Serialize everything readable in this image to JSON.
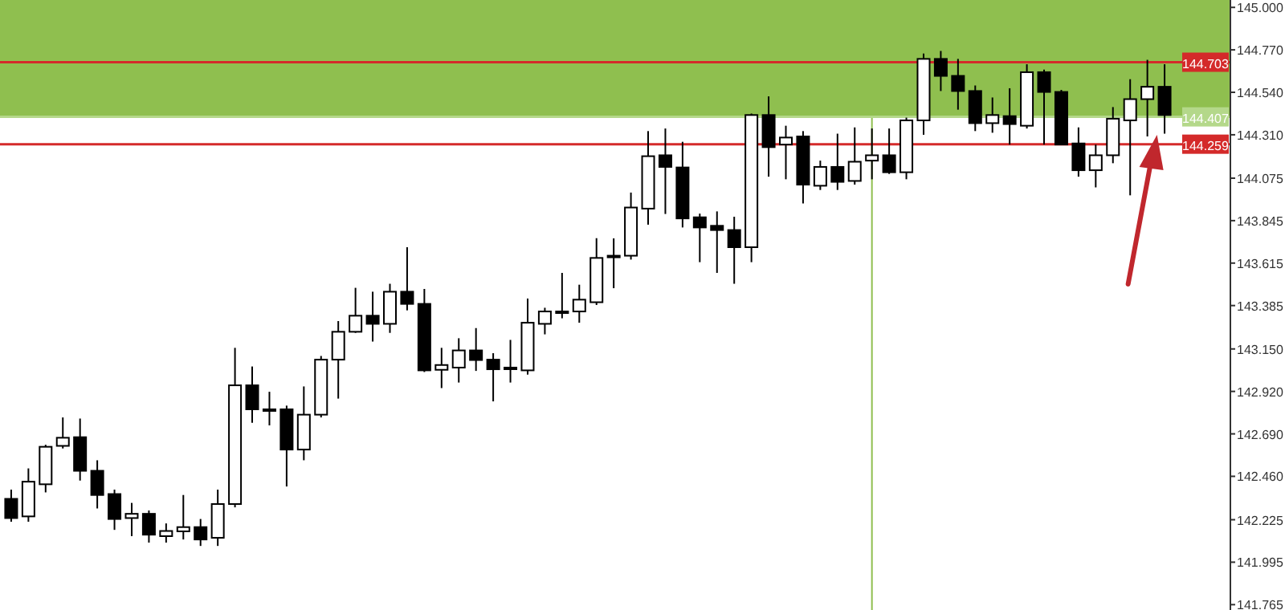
{
  "chart_data": {
    "type": "candlestick",
    "categories": [
      null,
      null,
      null,
      null,
      null,
      null,
      null,
      null,
      null,
      null,
      null,
      null,
      null,
      null,
      null,
      null,
      null,
      null,
      null,
      null,
      null,
      null,
      null,
      null,
      null,
      null,
      null,
      null,
      null,
      null,
      null,
      null,
      null,
      null,
      null,
      null,
      null,
      null,
      null,
      null,
      null,
      null,
      null,
      null,
      null,
      null,
      null,
      null,
      null,
      null,
      null,
      null,
      null,
      null,
      null,
      null,
      null,
      null,
      null,
      null,
      null,
      null,
      null,
      null,
      null,
      null,
      null,
      null
    ],
    "ohlc": [
      [
        142.338,
        142.388,
        142.214,
        142.234
      ],
      [
        142.243,
        142.503,
        142.214,
        142.431
      ],
      [
        142.417,
        142.631,
        142.373,
        142.62
      ],
      [
        142.625,
        142.779,
        142.611,
        142.669
      ],
      [
        142.672,
        142.773,
        142.437,
        142.49
      ],
      [
        142.49,
        142.547,
        142.286,
        142.359
      ],
      [
        142.364,
        142.388,
        142.17,
        142.229
      ],
      [
        142.234,
        142.316,
        142.136,
        142.257
      ],
      [
        142.257,
        142.275,
        142.101,
        142.144
      ],
      [
        142.136,
        142.205,
        142.101,
        142.164
      ],
      [
        142.162,
        142.359,
        142.118,
        142.185
      ],
      [
        142.185,
        142.229,
        142.083,
        142.118
      ],
      [
        142.127,
        142.388,
        142.083,
        142.31
      ],
      [
        142.31,
        143.156,
        142.292,
        142.953
      ],
      [
        142.953,
        143.055,
        142.75,
        142.823
      ],
      [
        142.823,
        142.918,
        142.736,
        142.818
      ],
      [
        142.823,
        142.843,
        142.405,
        142.605
      ],
      [
        142.605,
        142.947,
        142.547,
        142.794
      ],
      [
        142.794,
        143.112,
        142.779,
        143.092
      ],
      [
        143.092,
        143.301,
        142.881,
        143.243
      ],
      [
        143.243,
        143.481,
        143.237,
        143.33
      ],
      [
        143.33,
        143.46,
        143.19,
        143.286
      ],
      [
        143.286,
        143.503,
        143.237,
        143.46
      ],
      [
        143.46,
        143.701,
        143.359,
        143.394
      ],
      [
        143.394,
        143.475,
        143.025,
        143.034
      ],
      [
        143.037,
        143.156,
        142.938,
        143.063
      ],
      [
        143.049,
        143.208,
        142.968,
        143.142
      ],
      [
        143.142,
        143.263,
        143.031,
        143.09
      ],
      [
        143.092,
        143.127,
        142.866,
        143.04
      ],
      [
        143.043,
        143.199,
        142.968,
        143.049
      ],
      [
        143.034,
        143.423,
        143.011,
        143.292
      ],
      [
        143.286,
        143.373,
        143.229,
        143.353
      ],
      [
        143.35,
        143.562,
        143.316,
        143.353
      ],
      [
        143.353,
        143.498,
        143.292,
        143.417
      ],
      [
        143.403,
        143.75,
        143.388,
        143.643
      ],
      [
        143.651,
        143.749,
        143.479,
        143.655
      ],
      [
        143.655,
        143.997,
        143.634,
        143.916
      ],
      [
        143.91,
        144.33,
        143.823,
        144.194
      ],
      [
        144.199,
        144.344,
        143.881,
        144.136
      ],
      [
        144.133,
        144.272,
        143.808,
        143.857
      ],
      [
        143.863,
        143.883,
        143.62,
        143.808
      ],
      [
        143.817,
        143.895,
        143.562,
        143.794
      ],
      [
        143.794,
        143.866,
        143.503,
        143.701
      ],
      [
        143.701,
        144.425,
        143.62,
        144.417
      ],
      [
        144.417,
        144.518,
        144.083,
        144.243
      ],
      [
        144.257,
        144.359,
        144.069,
        144.295
      ],
      [
        144.301,
        144.33,
        143.938,
        144.04
      ],
      [
        144.034,
        144.17,
        144.011,
        144.136
      ],
      [
        144.136,
        144.316,
        144.011,
        144.055
      ],
      [
        144.06,
        144.35,
        144.04,
        144.164
      ],
      [
        144.17,
        144.344,
        144.069,
        144.199
      ],
      [
        144.199,
        144.344,
        144.098,
        144.107
      ],
      [
        144.107,
        144.403,
        144.069,
        144.388
      ],
      [
        144.388,
        144.75,
        144.31,
        144.721
      ],
      [
        144.721,
        144.764,
        144.547,
        144.629
      ],
      [
        144.629,
        144.721,
        144.446,
        144.547
      ],
      [
        144.547,
        144.577,
        144.33,
        144.373
      ],
      [
        144.373,
        144.512,
        144.321,
        144.417
      ],
      [
        144.411,
        144.562,
        144.257,
        144.368
      ],
      [
        144.359,
        144.692,
        144.344,
        144.649
      ],
      [
        144.649,
        144.663,
        144.257,
        144.542
      ],
      [
        144.542,
        144.553,
        144.255,
        144.257
      ],
      [
        144.263,
        144.35,
        144.083,
        144.118
      ],
      [
        144.118,
        144.257,
        144.025,
        144.199
      ],
      [
        144.199,
        144.46,
        144.156,
        144.397
      ],
      [
        144.388,
        144.611,
        143.982,
        144.503
      ],
      [
        144.503,
        144.716,
        144.301,
        144.57
      ],
      [
        144.57,
        144.692,
        144.316,
        144.417
      ]
    ],
    "ylim": [
      141.736,
      145.04
    ],
    "yticks": [
      {
        "value": 145,
        "label": "145.000"
      },
      {
        "value": 144.77,
        "label": "144.770"
      },
      {
        "value": 144.54,
        "label": "144.540"
      },
      {
        "value": 144.31,
        "label": "144.310"
      },
      {
        "value": 144.075,
        "label": "144.075"
      },
      {
        "value": 143.845,
        "label": "143.845"
      },
      {
        "value": 143.615,
        "label": "143.615"
      },
      {
        "value": 143.385,
        "label": "143.385"
      },
      {
        "value": 143.15,
        "label": "143.150"
      },
      {
        "value": 142.92,
        "label": "142.920"
      },
      {
        "value": 142.69,
        "label": "142.690"
      },
      {
        "value": 142.46,
        "label": "142.460"
      },
      {
        "value": 142.225,
        "label": "142.225"
      },
      {
        "value": 141.995,
        "label": "141.995"
      },
      {
        "value": 141.765,
        "label": "141.765"
      }
    ],
    "tick_labels": "y",
    "grid": false,
    "ref_lines": [
      {
        "axis": "y",
        "value": 144.703,
        "label": "144.703",
        "color": "#d42a2a"
      },
      {
        "axis": "y",
        "value": 144.407,
        "label": "144.407",
        "color": "#b4d88a"
      },
      {
        "axis": "y",
        "value": 144.259,
        "label": "144.259",
        "color": "#d42a2a"
      }
    ],
    "bands": [
      {
        "axis": "y",
        "from": 144.407,
        "to": 145.04,
        "color": "#8fbf4f"
      }
    ]
  }
}
